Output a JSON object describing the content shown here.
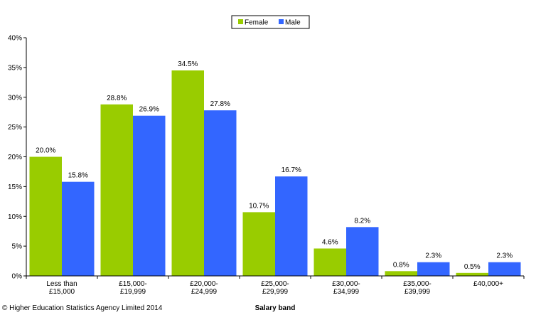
{
  "chart_data": {
    "type": "bar",
    "categories": [
      [
        "Less than",
        "£15,000"
      ],
      [
        "£15,000-",
        "£19,999"
      ],
      [
        "£20,000-",
        "£24,999"
      ],
      [
        "£25,000-",
        "£29,999"
      ],
      [
        "£30,000-",
        "£34,999"
      ],
      [
        "£35,000-",
        "£39,999"
      ],
      [
        "£40,000+"
      ]
    ],
    "series": [
      {
        "name": "Female",
        "color": "#99cc00",
        "values": [
          20.0,
          28.8,
          34.5,
          10.7,
          4.6,
          0.8,
          0.5
        ],
        "labels": [
          "20.0%",
          "28.8%",
          "34.5%",
          "10.7%",
          "4.6%",
          "0.8%",
          "0.5%"
        ]
      },
      {
        "name": "Male",
        "color": "#3366ff",
        "values": [
          15.8,
          26.9,
          27.8,
          16.7,
          8.2,
          2.3,
          2.3
        ],
        "labels": [
          "15.8%",
          "26.9%",
          "27.8%",
          "16.7%",
          "8.2%",
          "2.3%",
          "2.3%"
        ]
      }
    ],
    "ylim": [
      0,
      40
    ],
    "yticks": [
      "0%",
      "5%",
      "10%",
      "15%",
      "20%",
      "25%",
      "30%",
      "35%",
      "40%"
    ],
    "xlabel": "Salary band",
    "ylabel": "",
    "title": "",
    "grid": false,
    "legend_position": "top-center"
  },
  "footer": {
    "copyright": "© Higher Education Statistics Agency Limited 2014"
  }
}
